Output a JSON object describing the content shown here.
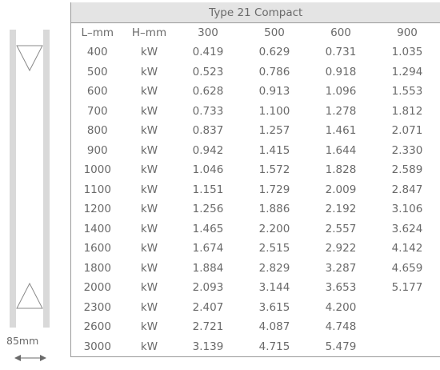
{
  "profile": {
    "depth_label": "85mm"
  },
  "table": {
    "title": "Type 21 Compact",
    "headers": [
      "L–mm",
      "H–mm",
      "300",
      "500",
      "600",
      "900"
    ],
    "rows": [
      [
        "400",
        "kW",
        "0.419",
        "0.629",
        "0.731",
        "1.035"
      ],
      [
        "500",
        "kW",
        "0.523",
        "0.786",
        "0.918",
        "1.294"
      ],
      [
        "600",
        "kW",
        "0.628",
        "0.913",
        "1.096",
        "1.553"
      ],
      [
        "700",
        "kW",
        "0.733",
        "1.100",
        "1.278",
        "1.812"
      ],
      [
        "800",
        "kW",
        "0.837",
        "1.257",
        "1.461",
        "2.071"
      ],
      [
        "900",
        "kW",
        "0.942",
        "1.415",
        "1.644",
        "2.330"
      ],
      [
        "1000",
        "kW",
        "1.046",
        "1.572",
        "1.828",
        "2.589"
      ],
      [
        "1100",
        "kW",
        "1.151",
        "1.729",
        "2.009",
        "2.847"
      ],
      [
        "1200",
        "kW",
        "1.256",
        "1.886",
        "2.192",
        "3.106"
      ],
      [
        "1400",
        "kW",
        "1.465",
        "2.200",
        "2.557",
        "3.624"
      ],
      [
        "1600",
        "kW",
        "1.674",
        "2.515",
        "2.922",
        "4.142"
      ],
      [
        "1800",
        "kW",
        "1.884",
        "2.829",
        "3.287",
        "4.659"
      ],
      [
        "2000",
        "kW",
        "2.093",
        "3.144",
        "3.653",
        "5.177"
      ],
      [
        "2300",
        "kW",
        "2.407",
        "3.615",
        "4.200",
        ""
      ],
      [
        "2600",
        "kW",
        "2.721",
        "4.087",
        "4.748",
        ""
      ],
      [
        "3000",
        "kW",
        "3.139",
        "4.715",
        "5.479",
        ""
      ]
    ]
  }
}
